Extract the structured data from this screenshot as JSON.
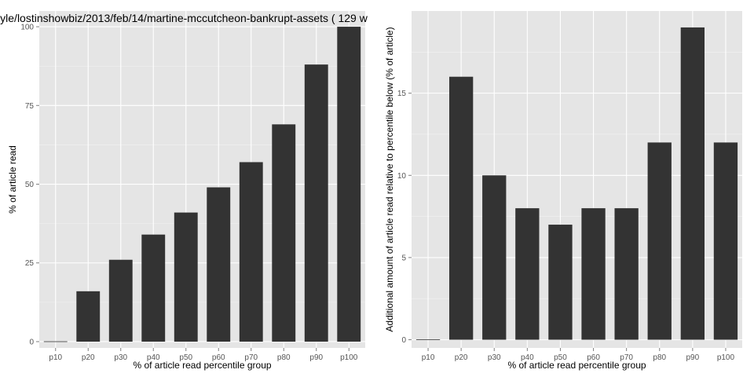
{
  "chart_data": [
    {
      "type": "bar",
      "title": "yle/lostinshowbiz/2013/feb/14/martine-mccutcheon-bankrupt-assets ( 129 w",
      "xlabel": "% of article read percentile group",
      "ylabel": "% of article read",
      "categories": [
        "p10",
        "p20",
        "p30",
        "p40",
        "p50",
        "p60",
        "p70",
        "p80",
        "p90",
        "p100"
      ],
      "values": [
        0,
        16,
        26,
        34,
        41,
        49,
        57,
        69,
        88,
        100
      ],
      "ylim": [
        -2,
        105
      ],
      "yticks": [
        0,
        25,
        50,
        75,
        100
      ],
      "grid": true,
      "bar_color": "#333333",
      "panel_color": "#e5e5e5"
    },
    {
      "type": "bar",
      "title": "",
      "xlabel": "% of article read percentile group",
      "ylabel": "Additional amount of article read relative to percentile below (% of article)",
      "categories": [
        "p10",
        "p20",
        "p30",
        "p40",
        "p50",
        "p60",
        "p70",
        "p80",
        "p90",
        "p100"
      ],
      "values": [
        0,
        16,
        10,
        8,
        7,
        8,
        8,
        12,
        19,
        12
      ],
      "ylim": [
        -0.5,
        20
      ],
      "yticks": [
        0,
        5,
        10,
        15
      ],
      "grid": true,
      "bar_color": "#333333",
      "panel_color": "#e5e5e5"
    }
  ]
}
